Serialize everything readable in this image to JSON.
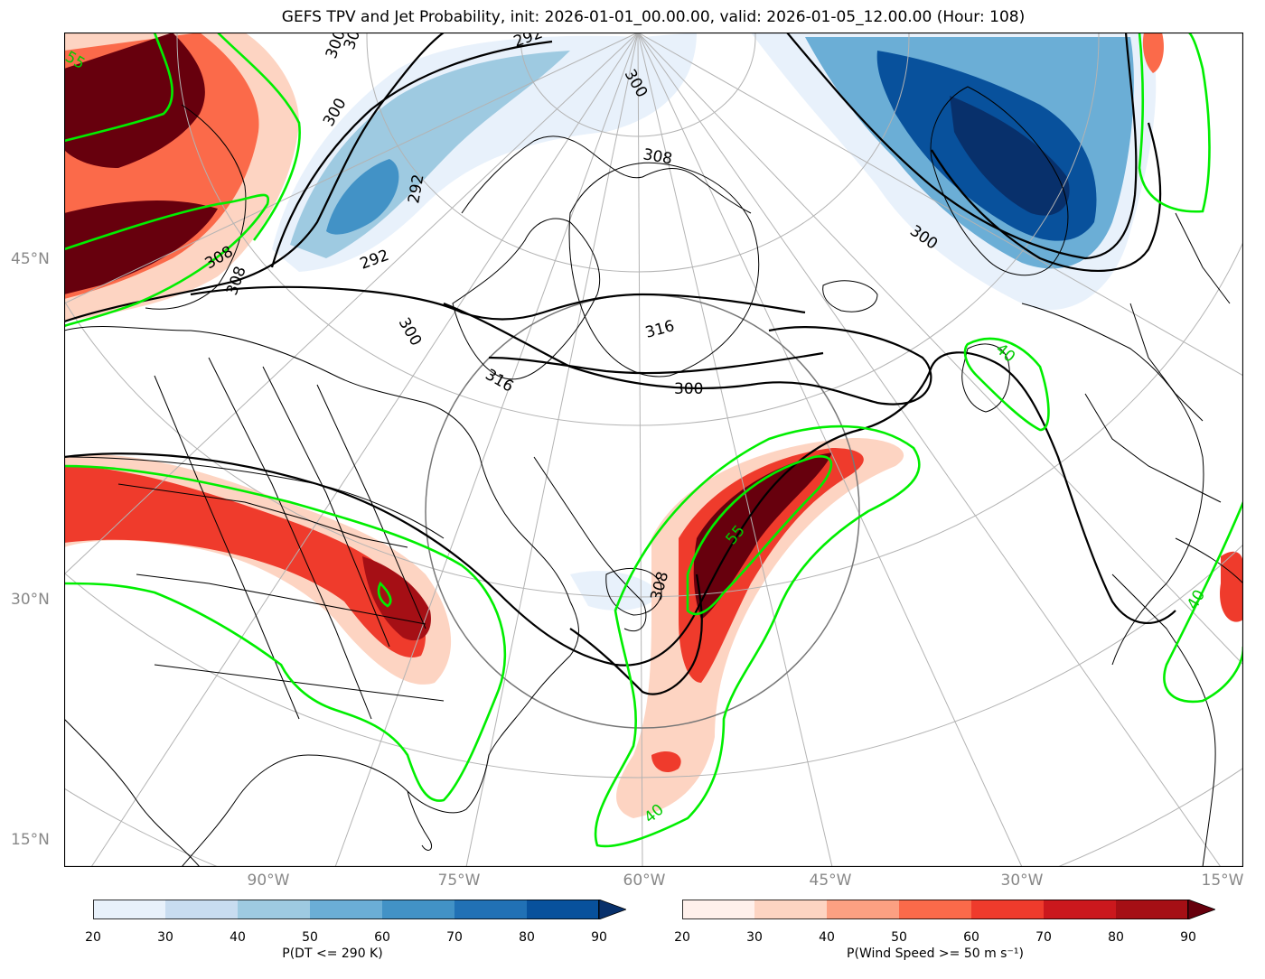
{
  "title": "GEFS TPV and Jet Probability, init: 2026-01-01_00.00.00, valid: 2026-01-05_12.00.00 (Hour: 108)",
  "lat_labels": [
    "45°N",
    "30°N",
    "15°N"
  ],
  "lon_labels": [
    "90°W",
    "75°W",
    "60°W",
    "45°W",
    "30°W",
    "15°W"
  ],
  "colorbars": [
    {
      "label": "P(DT <= 290 K)",
      "ticks": [
        "20",
        "30",
        "40",
        "50",
        "60",
        "70",
        "80",
        "90"
      ],
      "colors": [
        "#e8f1fb",
        "#c8dcf0",
        "#9ecae1",
        "#6baed6",
        "#4292c6",
        "#2171b5",
        "#08519c",
        "#08306b"
      ]
    },
    {
      "label": "P(Wind Speed >= 50 m s⁻¹)",
      "ticks": [
        "20",
        "30",
        "40",
        "50",
        "60",
        "70",
        "80",
        "90"
      ],
      "colors": [
        "#fff0eb",
        "#fdd4c2",
        "#fca082",
        "#fb6a4a",
        "#ef3b2c",
        "#cb181d",
        "#a50f15",
        "#67000d"
      ]
    }
  ],
  "theta_contour_labels": [
    "292",
    "292",
    "292",
    "300",
    "300",
    "300",
    "300",
    "300",
    "300",
    "308",
    "308",
    "308",
    "308",
    "308",
    "316",
    "316"
  ],
  "jet_contour_labels": [
    "55",
    "55",
    "40",
    "40",
    "40"
  ],
  "colors": {
    "jet_contour": "#00ee00",
    "theta_contour": "#000000",
    "graticule": "#b3b3b3",
    "coast": "#000000"
  }
}
